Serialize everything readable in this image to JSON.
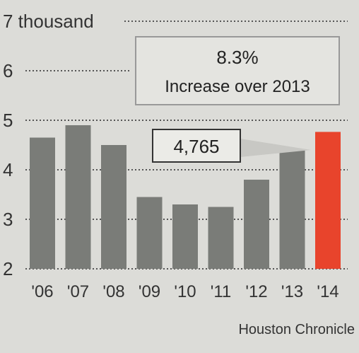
{
  "chart_data": {
    "type": "bar",
    "categories": [
      "'06",
      "'07",
      "'08",
      "'09",
      "'10",
      "'11",
      "'12",
      "'13",
      "'14"
    ],
    "values": [
      4.65,
      4.9,
      4.5,
      3.45,
      3.3,
      3.25,
      3.8,
      4.4,
      4.765
    ],
    "ylim": [
      2,
      7
    ],
    "yticks": [
      2,
      3,
      4,
      5,
      6,
      7
    ],
    "ytick_labels": [
      "2",
      "3",
      "4",
      "5",
      "6",
      "7 thousand"
    ],
    "bar_color": "#7a7c78",
    "highlight_color": "#e8442c",
    "highlight_index": 8,
    "grid": true
  },
  "callout": {
    "percent": "8.3%",
    "text": "Increase over 2013"
  },
  "value_label": "4,765",
  "credit": "Houston Chronicle"
}
